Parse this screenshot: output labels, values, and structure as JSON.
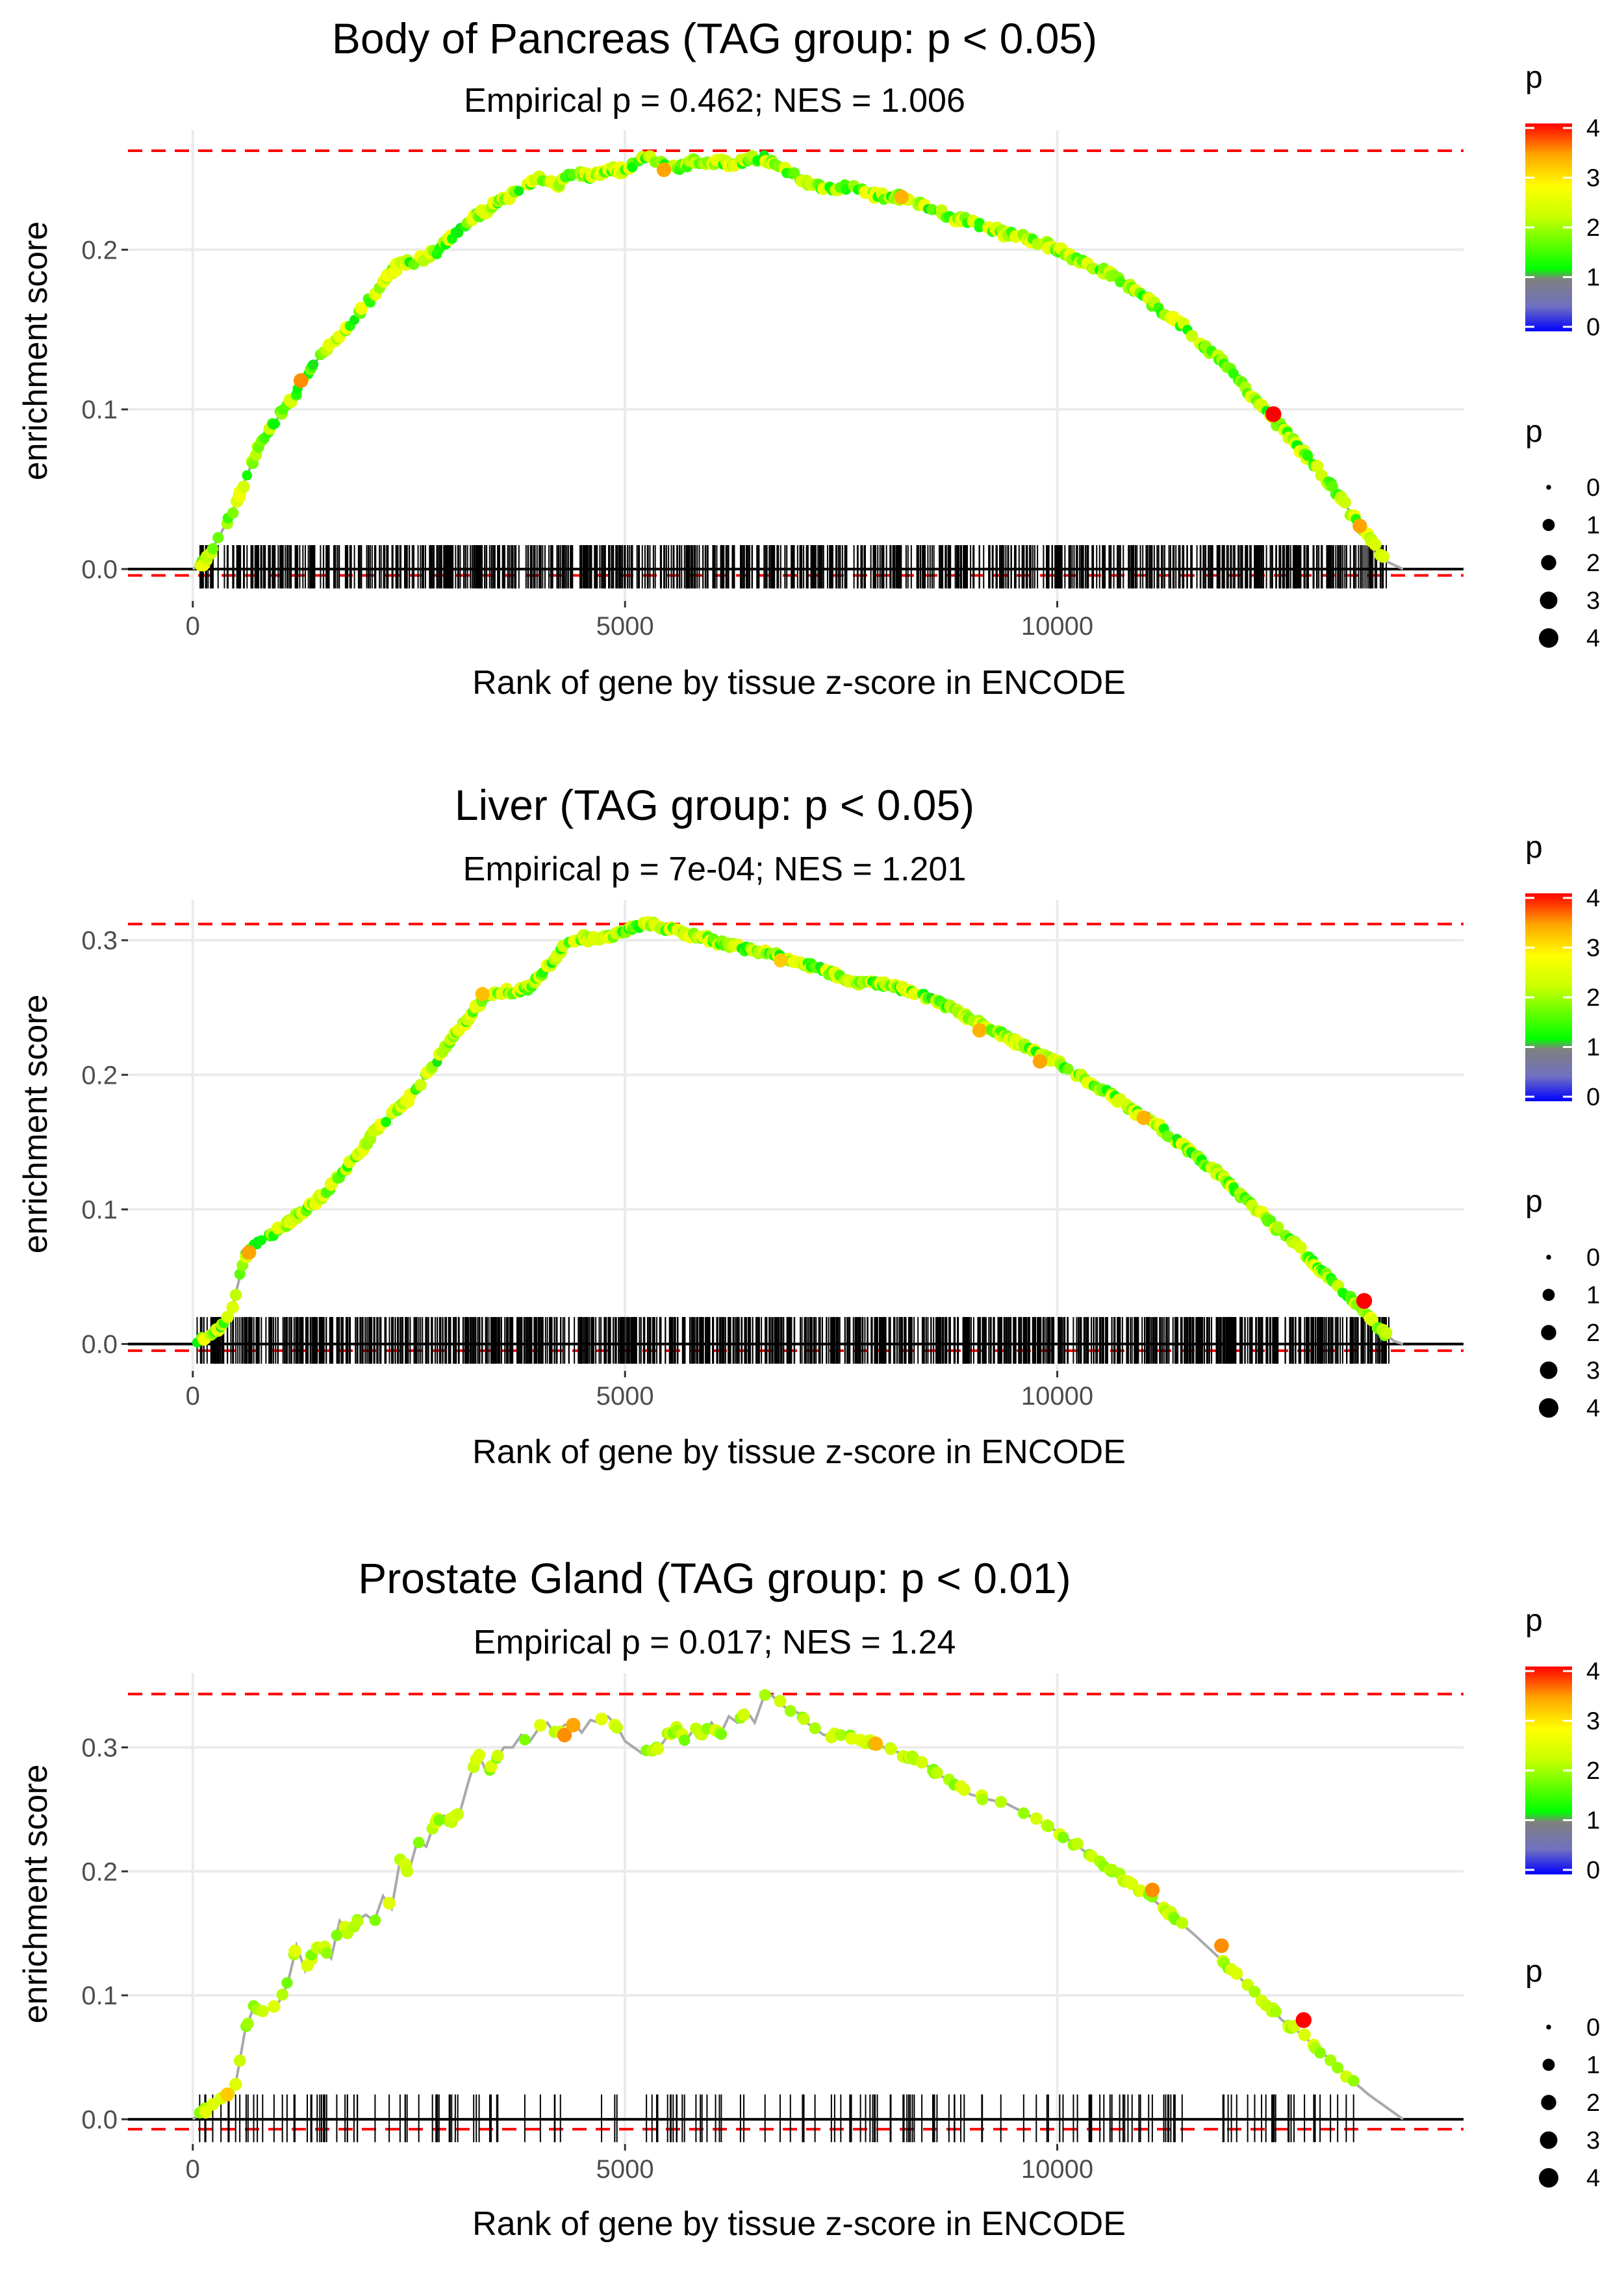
{
  "chart_data": [
    {
      "type": "line",
      "title": "Body of Pancreas (TAG group: p < 0.05)",
      "subtitle": "Empirical p = 0.462; NES = 1.006",
      "xlabel": "Rank of gene by tissue z-score in ENCODE",
      "ylabel": "enrichment score",
      "xlim": [
        -750,
        14700
      ],
      "ylim": [
        -0.02,
        0.275
      ],
      "x_ticks": [
        0,
        5000,
        10000
      ],
      "x_tick_labels": [
        "0",
        "5000",
        "10000"
      ],
      "y_ticks": [
        0.0,
        0.1,
        0.2
      ],
      "y_tick_labels": [
        "0.0",
        "0.1",
        "0.2"
      ],
      "max_es_line": 0.262,
      "min_es_line": -0.004,
      "rug_height": 0.015,
      "n_points": 900,
      "highlight": [
        {
          "x": 1250,
          "y": 0.118,
          "p": 3.4
        },
        {
          "x": 5450,
          "y": 0.25,
          "p": 3.3
        },
        {
          "x": 8200,
          "y": 0.233,
          "p": 3.2
        },
        {
          "x": 12500,
          "y": 0.097,
          "p": 4.2
        },
        {
          "x": 13500,
          "y": 0.027,
          "p": 3.3
        }
      ],
      "series": [
        {
          "name": "enrichment score",
          "x": [
            0,
            150,
            300,
            450,
            600,
            750,
            900,
            1050,
            1200,
            1350,
            1500,
            1700,
            1900,
            2000,
            2200,
            2400,
            2600,
            2800,
            3000,
            3200,
            3400,
            3600,
            3800,
            4000,
            4200,
            4400,
            4600,
            4800,
            5000,
            5200,
            5400,
            5600,
            5800,
            6000,
            6200,
            6400,
            6600,
            6800,
            7000,
            7200,
            7400,
            7600,
            7800,
            8000,
            8200,
            8400,
            8600,
            8800,
            9000,
            9200,
            9400,
            9600,
            9800,
            10000,
            10200,
            10400,
            10600,
            10800,
            11000,
            11200,
            11400,
            11600,
            11800,
            12000,
            12200,
            12400,
            12600,
            12800,
            13000,
            13200,
            13400,
            13600,
            13800,
            14000
          ],
          "y": [
            0.0,
            0.005,
            0.02,
            0.035,
            0.055,
            0.075,
            0.088,
            0.1,
            0.11,
            0.125,
            0.135,
            0.145,
            0.158,
            0.165,
            0.18,
            0.192,
            0.193,
            0.198,
            0.208,
            0.218,
            0.225,
            0.232,
            0.238,
            0.245,
            0.24,
            0.248,
            0.245,
            0.25,
            0.25,
            0.258,
            0.255,
            0.25,
            0.256,
            0.255,
            0.254,
            0.256,
            0.258,
            0.252,
            0.245,
            0.24,
            0.238,
            0.24,
            0.235,
            0.233,
            0.233,
            0.228,
            0.224,
            0.22,
            0.218,
            0.214,
            0.21,
            0.208,
            0.205,
            0.2,
            0.195,
            0.19,
            0.185,
            0.178,
            0.17,
            0.162,
            0.155,
            0.145,
            0.135,
            0.125,
            0.112,
            0.1,
            0.088,
            0.076,
            0.063,
            0.05,
            0.035,
            0.02,
            0.005,
            0.0
          ]
        }
      ]
    },
    {
      "type": "line",
      "title": "Liver (TAG group: p < 0.05)",
      "subtitle": "Empirical p = 7e-04; NES = 1.201",
      "xlabel": "Rank of gene by tissue z-score in ENCODE",
      "ylabel": "enrichment score",
      "xlim": [
        -750,
        14700
      ],
      "ylim": [
        -0.02,
        0.33
      ],
      "x_ticks": [
        0,
        5000,
        10000
      ],
      "x_tick_labels": [
        "0",
        "5000",
        "10000"
      ],
      "y_ticks": [
        0.0,
        0.1,
        0.2,
        0.3
      ],
      "y_tick_labels": [
        "0.0",
        "0.1",
        "0.2",
        "0.3"
      ],
      "max_es_line": 0.312,
      "min_es_line": -0.005,
      "rug_height": 0.02,
      "n_points": 1100,
      "highlight": [
        {
          "x": 650,
          "y": 0.068,
          "p": 3.3
        },
        {
          "x": 3350,
          "y": 0.26,
          "p": 3.1
        },
        {
          "x": 6800,
          "y": 0.285,
          "p": 3.0
        },
        {
          "x": 9100,
          "y": 0.233,
          "p": 3.2
        },
        {
          "x": 9800,
          "y": 0.21,
          "p": 3.3
        },
        {
          "x": 11000,
          "y": 0.168,
          "p": 3.2
        },
        {
          "x": 13550,
          "y": 0.032,
          "p": 4.2
        }
      ],
      "series": [
        {
          "name": "enrichment score",
          "x": [
            0,
            150,
            300,
            450,
            600,
            750,
            900,
            1100,
            1300,
            1500,
            1700,
            1900,
            2100,
            2300,
            2500,
            2700,
            2900,
            3100,
            3300,
            3500,
            3700,
            3900,
            4100,
            4300,
            4500,
            4700,
            4900,
            5100,
            5300,
            5500,
            5700,
            5900,
            6100,
            6300,
            6500,
            6700,
            6900,
            7100,
            7300,
            7500,
            7700,
            7900,
            8100,
            8300,
            8500,
            8700,
            8900,
            9100,
            9300,
            9500,
            9700,
            9900,
            10100,
            10300,
            10500,
            10700,
            10900,
            11100,
            11300,
            11500,
            11700,
            11900,
            12100,
            12300,
            12500,
            12700,
            12900,
            13100,
            13300,
            13500,
            13700,
            13900,
            14000
          ],
          "y": [
            0.0,
            0.005,
            0.012,
            0.025,
            0.065,
            0.075,
            0.08,
            0.09,
            0.1,
            0.11,
            0.125,
            0.14,
            0.158,
            0.17,
            0.182,
            0.2,
            0.218,
            0.235,
            0.252,
            0.262,
            0.262,
            0.265,
            0.28,
            0.295,
            0.302,
            0.3,
            0.305,
            0.31,
            0.312,
            0.308,
            0.305,
            0.302,
            0.298,
            0.295,
            0.292,
            0.29,
            0.285,
            0.282,
            0.278,
            0.272,
            0.268,
            0.268,
            0.265,
            0.262,
            0.258,
            0.252,
            0.245,
            0.238,
            0.232,
            0.225,
            0.218,
            0.213,
            0.205,
            0.198,
            0.19,
            0.182,
            0.172,
            0.165,
            0.155,
            0.145,
            0.135,
            0.125,
            0.112,
            0.1,
            0.088,
            0.078,
            0.065,
            0.052,
            0.04,
            0.028,
            0.012,
            0.002,
            0.0
          ]
        }
      ]
    },
    {
      "type": "line",
      "title": "Prostate Gland (TAG group: p < 0.01)",
      "subtitle": "Empirical p = 0.017; NES = 1.24",
      "xlabel": "Rank of gene by tissue z-score in ENCODE",
      "ylabel": "enrichment score",
      "xlim": [
        -750,
        14700
      ],
      "ylim": [
        -0.02,
        0.36
      ],
      "x_ticks": [
        0,
        5000,
        10000
      ],
      "x_tick_labels": [
        "0",
        "5000",
        "10000"
      ],
      "y_ticks": [
        0.0,
        0.1,
        0.2,
        0.3
      ],
      "y_tick_labels": [
        "0.0",
        "0.1",
        "0.2",
        "0.3"
      ],
      "max_es_line": 0.343,
      "min_es_line": -0.008,
      "rug_height": 0.02,
      "n_points": 190,
      "highlight": [
        {
          "x": 400,
          "y": 0.02,
          "p": 3.0
        },
        {
          "x": 4300,
          "y": 0.31,
          "p": 3.4
        },
        {
          "x": 4400,
          "y": 0.318,
          "p": 3.3
        },
        {
          "x": 7900,
          "y": 0.303,
          "p": 3.2
        },
        {
          "x": 11100,
          "y": 0.185,
          "p": 3.4
        },
        {
          "x": 11900,
          "y": 0.14,
          "p": 3.4
        },
        {
          "x": 12850,
          "y": 0.08,
          "p": 4.2
        }
      ],
      "series": [
        {
          "name": "enrichment score",
          "x": [
            0,
            200,
            400,
            500,
            600,
            700,
            800,
            900,
            1000,
            1100,
            1200,
            1300,
            1400,
            1500,
            1600,
            1700,
            1800,
            1900,
            2000,
            2100,
            2200,
            2300,
            2400,
            2500,
            2600,
            2700,
            2800,
            2900,
            3000,
            3100,
            3200,
            3300,
            3400,
            3500,
            3600,
            3700,
            3800,
            3900,
            4000,
            4100,
            4200,
            4300,
            4400,
            4500,
            4600,
            4700,
            4800,
            4900,
            5000,
            5200,
            5400,
            5500,
            5600,
            5700,
            5800,
            5900,
            6000,
            6100,
            6200,
            6300,
            6400,
            6500,
            6600,
            6700,
            6800,
            6900,
            7000,
            7100,
            7200,
            7300,
            7400,
            7600,
            7800,
            8000,
            8200,
            8400,
            8600,
            8800,
            9000,
            9200,
            9400,
            9600,
            9800,
            10000,
            10200,
            10400,
            10600,
            10800,
            11000,
            11200,
            11400,
            11600,
            11800,
            12000,
            12200,
            12400,
            12600,
            12800,
            13000,
            13200,
            13400,
            13600,
            13800,
            14000
          ],
          "y": [
            0.0,
            0.01,
            0.02,
            0.03,
            0.07,
            0.09,
            0.085,
            0.09,
            0.095,
            0.11,
            0.14,
            0.12,
            0.135,
            0.14,
            0.13,
            0.16,
            0.15,
            0.16,
            0.165,
            0.16,
            0.18,
            0.17,
            0.21,
            0.2,
            0.225,
            0.22,
            0.24,
            0.245,
            0.24,
            0.25,
            0.275,
            0.295,
            0.28,
            0.29,
            0.3,
            0.3,
            0.31,
            0.305,
            0.315,
            0.32,
            0.31,
            0.318,
            0.32,
            0.312,
            0.322,
            0.32,
            0.325,
            0.318,
            0.305,
            0.295,
            0.3,
            0.31,
            0.315,
            0.305,
            0.315,
            0.31,
            0.32,
            0.31,
            0.325,
            0.32,
            0.33,
            0.32,
            0.34,
            0.342,
            0.335,
            0.33,
            0.328,
            0.32,
            0.315,
            0.31,
            0.31,
            0.308,
            0.305,
            0.3,
            0.295,
            0.29,
            0.28,
            0.27,
            0.262,
            0.258,
            0.255,
            0.248,
            0.24,
            0.232,
            0.222,
            0.212,
            0.203,
            0.192,
            0.183,
            0.172,
            0.16,
            0.148,
            0.135,
            0.122,
            0.108,
            0.095,
            0.08,
            0.07,
            0.058,
            0.045,
            0.032,
            0.02,
            0.01,
            0.0
          ]
        }
      ]
    }
  ],
  "legend": {
    "color_title": "p",
    "color_ticks": [
      0,
      1,
      2,
      3,
      4
    ],
    "size_title": "p",
    "size_ticks": [
      0,
      1,
      2,
      3,
      4
    ],
    "colors": {
      "p0": "#0000ff",
      "p1": "#00ff00",
      "p2": "#ffff00",
      "p3": "#ffa500",
      "p4": "#ff0000",
      "curve": "#a9a9a9",
      "ref_line": "#ff0000",
      "grid": "#ebebeb",
      "rug": "#000000"
    }
  }
}
